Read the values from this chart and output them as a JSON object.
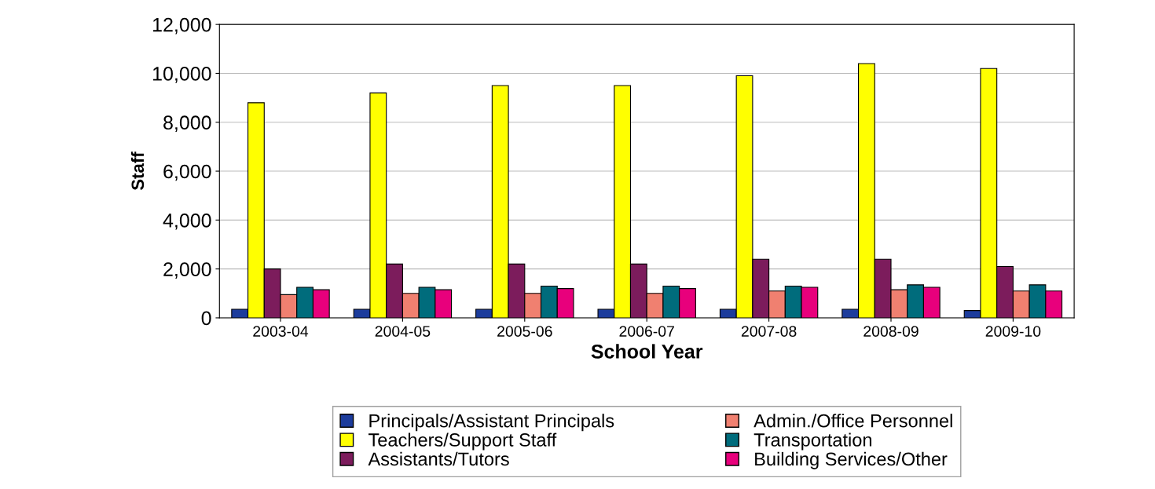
{
  "chart_data": {
    "type": "bar",
    "xlabel": "School Year",
    "ylabel": "Staff",
    "categories": [
      "2003-04",
      "2004-05",
      "2005-06",
      "2006-07",
      "2007-08",
      "2008-09",
      "2009-10"
    ],
    "series": [
      {
        "name": "Principals/Assistant Principals",
        "color": "#1c3c9c",
        "values": [
          350,
          350,
          350,
          350,
          350,
          350,
          300
        ]
      },
      {
        "name": "Teachers/Support Staff",
        "color": "#ffff00",
        "values": [
          8800,
          9200,
          9500,
          9500,
          9900,
          10400,
          10200
        ]
      },
      {
        "name": "Assistants/Tutors",
        "color": "#7c1c5c",
        "values": [
          2000,
          2200,
          2200,
          2200,
          2400,
          2400,
          2100
        ]
      },
      {
        "name": "Admin./Office Personnel",
        "color": "#f08070",
        "values": [
          950,
          1000,
          1000,
          1000,
          1100,
          1150,
          1100
        ]
      },
      {
        "name": "Transportation",
        "color": "#006c7c",
        "values": [
          1250,
          1250,
          1300,
          1300,
          1300,
          1350,
          1350
        ]
      },
      {
        "name": "Building Services/Other",
        "color": "#e8007c",
        "values": [
          1150,
          1150,
          1200,
          1200,
          1250,
          1250,
          1100
        ]
      }
    ],
    "ylim": [
      0,
      12000
    ],
    "yticks": [
      {
        "value": 0,
        "label": "0"
      },
      {
        "value": 2000,
        "label": "2,000"
      },
      {
        "value": 4000,
        "label": "4,000"
      },
      {
        "value": 6000,
        "label": "6,000"
      },
      {
        "value": 8000,
        "label": "8,000"
      },
      {
        "value": 10000,
        "label": "10,000"
      },
      {
        "value": 12000,
        "label": "12,000"
      }
    ],
    "grid": "y",
    "legend": "bottom"
  }
}
